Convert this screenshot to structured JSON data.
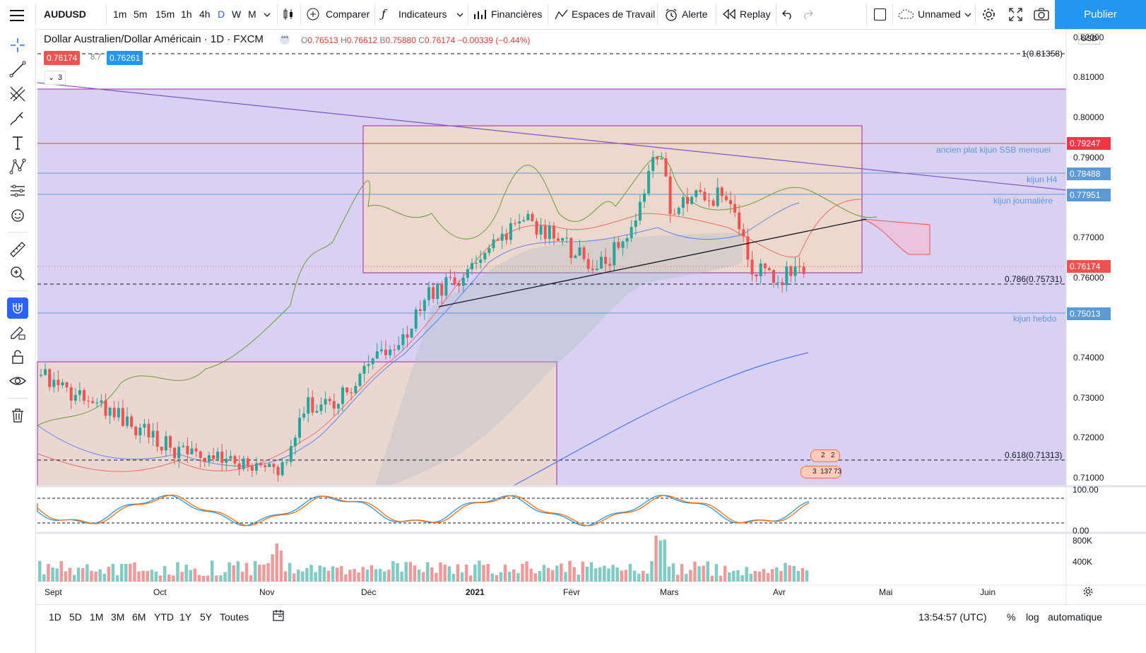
{
  "colors": {
    "accent": "#2962ff",
    "publish": "#2196f3",
    "down": "#ef5350",
    "up": "#26a69a",
    "red_line": "#f23645",
    "blue_line": "#5b9bd5",
    "purple_zone": "#d7cdf1",
    "box": "#efd9c6"
  },
  "toolbar": {
    "symbol": "AUDUSD",
    "intervals": [
      "1m",
      "5m",
      "15m",
      "1h",
      "4h",
      "D",
      "W",
      "M"
    ],
    "active_interval": "D",
    "compare": "Comparer",
    "indicators": "Indicateurs",
    "financials": "Financières",
    "workspaces": "Espaces de Travail",
    "alert": "Alerte",
    "replay": "Replay",
    "layout_name": "Unnamed",
    "publish": "Publier"
  },
  "legend": {
    "title": "Dollar Australien/Dollar Américain · 1D · FXCM",
    "o_key": "O",
    "o": "0.76513",
    "h_key": "H",
    "h": "0.76612",
    "b_key": "B",
    "b": "0.75880",
    "c_key": "C",
    "c": "0.76174",
    "change": "−0.00339 (−0.44%)",
    "bid": "0.76174",
    "spread": "8.7",
    "ask": "0.76261",
    "collapsed_count": "3"
  },
  "price_axis": {
    "currency": "USD",
    "labels": [
      "0.82000",
      "0.81000",
      "0.80000",
      "0.79000",
      "0.78000",
      "0.77000",
      "0.76000",
      "0.75000",
      "0.74000",
      "0.73000",
      "0.72000",
      "0.71000"
    ],
    "tags": [
      {
        "value": "0.79247",
        "color": "#f23645"
      },
      {
        "value": "0.78488",
        "color": "#5b9bd5"
      },
      {
        "value": "0.77951",
        "color": "#5b9bd5"
      },
      {
        "value": "0.76174",
        "color": "#ef5350"
      },
      {
        "value": "0.75013",
        "color": "#5b9bd5"
      }
    ]
  },
  "chart_lines": {
    "fib_1": "1(0.81358)",
    "fib_786": "0.786(0.75731)",
    "fib_618": "0.618(0.71313)",
    "kijun_ssb": "ancien plat kijun SSB mensuel",
    "kijun_h4": "kijun H4",
    "kijun_daily": "kijun journalière",
    "kijun_weekly": "kijun hebdo"
  },
  "oscillator": {
    "upper": "100.00",
    "lower": "0.00"
  },
  "volume": {
    "labels": [
      "800K",
      "400K"
    ]
  },
  "events": {
    "badge1": "2",
    "badge2": "2",
    "badge3": "3",
    "badge4": "137",
    "badge5": "73"
  },
  "time_axis": [
    "Sept",
    "Oct",
    "Nov",
    "Déc",
    "2021",
    "Févr",
    "Mars",
    "Avr",
    "Mai",
    "Juin"
  ],
  "bottom": {
    "ranges": [
      "1D",
      "5D",
      "1M",
      "3M",
      "6M",
      "YTD",
      "1Y",
      "5Y",
      "Toutes"
    ],
    "clock": "13:54:57 (UTC)",
    "percent": "%",
    "log": "log",
    "auto": "automatique"
  }
}
